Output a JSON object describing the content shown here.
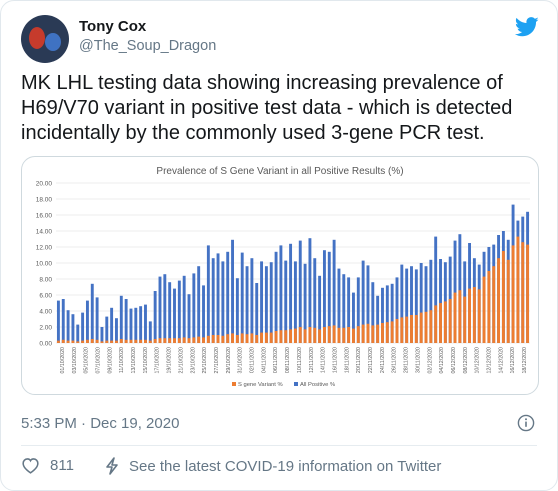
{
  "author": {
    "name": "Tony Cox",
    "handle": "@The_Soup_Dragon"
  },
  "tweet": {
    "text": "MK LHL testing data showing increasing prevalence of H69/V70 variant in positive test data - which is detected incidentally by the commonly used 3-gene PCR test.",
    "timestamp": "5:33 PM · Dec 19, 2020",
    "likes": "811",
    "covid_link": "See the latest COVID-19 information on Twitter"
  },
  "icons": {
    "bird": "twitter-bird-icon",
    "info": "info-icon",
    "heart": "heart-icon",
    "lightning": "lightning-icon"
  },
  "colors": {
    "twitter_blue": "#1da1f2",
    "series_sgene": "#ed7d31",
    "series_allpos": "#4472c4"
  },
  "chart_data": {
    "type": "bar",
    "title": "Prevalence of S Gene Variant in all Positive Results (%)",
    "ylim": [
      0,
      20
    ],
    "yticks": [
      "0.00",
      "2.00",
      "4.00",
      "6.00",
      "8.00",
      "10.00",
      "12.00",
      "14.00",
      "16.00",
      "18.00",
      "20.00"
    ],
    "tick_labels": [
      "01/10/2020",
      "03/10/2020",
      "05/10/2020",
      "07/10/2020",
      "09/10/2020",
      "11/10/2020",
      "13/10/2020",
      "15/10/2020",
      "17/10/2020",
      "19/10/2020",
      "21/10/2020",
      "23/10/2020",
      "25/10/2020",
      "27/10/2020",
      "29/10/2020",
      "31/10/2020",
      "02/11/2020",
      "04/11/2020",
      "06/11/2020",
      "08/11/2020",
      "10/11/2020",
      "12/11/2020",
      "14/11/2020",
      "16/11/2020",
      "18/11/2020",
      "20/11/2020",
      "22/11/2020",
      "24/11/2020",
      "26/11/2020",
      "28/11/2020",
      "30/11/2020",
      "02/12/2020",
      "04/12/2020",
      "06/12/2020",
      "08/12/2020",
      "10/12/2020",
      "12/12/2020",
      "14/12/2020",
      "16/12/2020",
      "18/12/2020"
    ],
    "legend": [
      "S gene Variant %",
      "All Positive %"
    ],
    "legend_position": "bottom",
    "grid": true,
    "series": [
      {
        "name": "All Positive %",
        "values": [
          5.3,
          5.5,
          4.1,
          3.6,
          2.3,
          3.8,
          5.3,
          7.4,
          5.7,
          2.0,
          3.3,
          4.4,
          3.1,
          5.9,
          5.5,
          4.3,
          4.4,
          4.6,
          4.8,
          2.7,
          6.5,
          8.3,
          8.6,
          7.6,
          6.8,
          7.8,
          8.4,
          6.1,
          8.7,
          9.6,
          7.2,
          12.2,
          10.6,
          11.2,
          10.2,
          11.4,
          12.9,
          8.1,
          11.3,
          9.6,
          10.6,
          7.5,
          10.2,
          9.6,
          10.1,
          11.4,
          12.2,
          10.3,
          12.4,
          10.2,
          12.8,
          9.9,
          13.1,
          10.6,
          8.4,
          11.6,
          11.4,
          12.9,
          9.3,
          8.6,
          8.2,
          6.3,
          8.2,
          10.3,
          9.7,
          7.6,
          5.9,
          6.9,
          7.2,
          7.4,
          8.2,
          9.8,
          9.3,
          9.6,
          9.2,
          10.0,
          9.6,
          10.4,
          13.3,
          10.5,
          10.1,
          10.8,
          12.8,
          13.6,
          10.2,
          12.5,
          10.6,
          9.8,
          11.4,
          12.0,
          12.3,
          13.5,
          14.0,
          12.9,
          17.3,
          15.3,
          15.8,
          16.4
        ]
      },
      {
        "name": "S gene Variant %",
        "values": [
          0.3,
          0.4,
          0.3,
          0.3,
          0.2,
          0.3,
          0.4,
          0.5,
          0.4,
          0.2,
          0.3,
          0.3,
          0.3,
          0.5,
          0.4,
          0.4,
          0.4,
          0.4,
          0.4,
          0.3,
          0.5,
          0.6,
          0.6,
          0.6,
          0.6,
          0.6,
          0.7,
          0.6,
          0.7,
          0.8,
          0.7,
          0.9,
          1.0,
          1.0,
          0.9,
          1.1,
          1.2,
          1.0,
          1.2,
          1.1,
          1.2,
          1.0,
          1.3,
          1.3,
          1.3,
          1.5,
          1.6,
          1.6,
          1.7,
          1.8,
          2.0,
          1.7,
          2.0,
          1.9,
          1.7,
          2.0,
          2.1,
          2.2,
          1.9,
          1.9,
          2.0,
          1.8,
          2.1,
          2.3,
          2.4,
          2.2,
          2.3,
          2.5,
          2.6,
          2.7,
          3.0,
          3.2,
          3.3,
          3.5,
          3.5,
          3.8,
          3.9,
          4.1,
          4.7,
          5.0,
          5.2,
          5.5,
          6.3,
          6.6,
          5.8,
          6.8,
          7.0,
          6.7,
          8.3,
          9.0,
          9.6,
          10.6,
          11.5,
          10.4,
          12.2,
          13.3,
          12.6,
          12.3
        ]
      }
    ]
  }
}
